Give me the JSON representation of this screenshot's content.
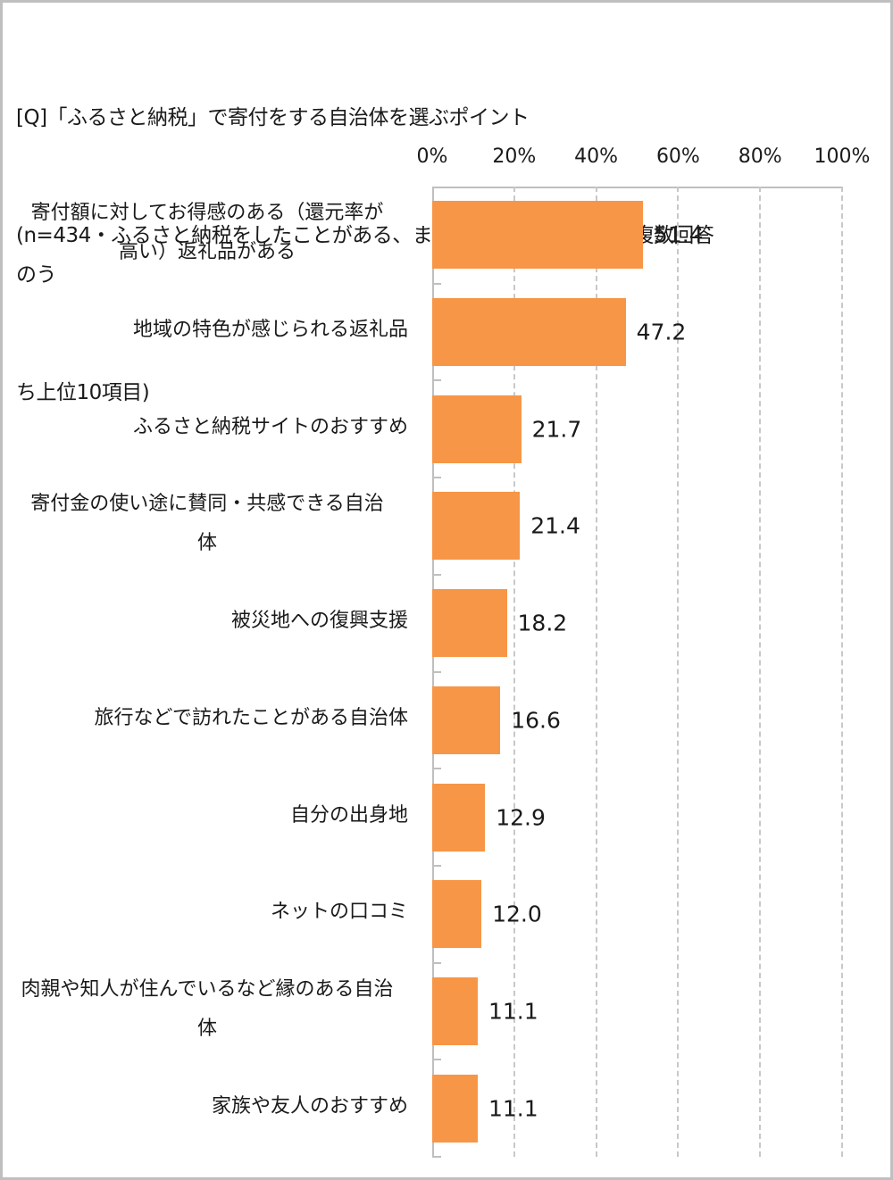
{
  "title": {
    "line1": "[Q]「ふるさと納税」で寄付をする自治体を選ぶポイント",
    "line2": "(n=434・ふるさと納税をしたことがある、またはしようと思う人・複数回答のう",
    "line3": "ち上位10項目)"
  },
  "colors": {
    "bar": "#F79646",
    "grid": "#C8C8C8",
    "border": "#BFBFBF"
  },
  "axis": {
    "ticks": [
      "0%",
      "20%",
      "40%",
      "60%",
      "80%",
      "100%"
    ]
  },
  "chart_data": {
    "type": "bar",
    "orientation": "horizontal",
    "title": "[Q]「ふるさと納税」で寄付をする自治体を選ぶポイント (n=434・ふるさと納税をしたことがある、またはしようと思う人・複数回答のうち上位10項目)",
    "xlabel": "",
    "ylabel": "",
    "xlim": [
      0,
      100
    ],
    "x_ticks": [
      "0%",
      "20%",
      "40%",
      "60%",
      "80%",
      "100%"
    ],
    "grid": true,
    "legend": null,
    "categories": [
      "寄付額に対してお得感のある（還元率が高い）返礼品がある",
      "地域の特色が感じられる返礼品",
      "ふるさと納税サイトのおすすめ",
      "寄付金の使い途に賛同・共感できる自治体",
      "被災地への復興支援",
      "旅行などで訪れたことがある自治体",
      "自分の出身地",
      "ネットの口コミ",
      "肉親や知人が住んでいるなど縁のある自治体",
      "家族や友人のおすすめ"
    ],
    "values": [
      51.4,
      47.2,
      21.7,
      21.4,
      18.2,
      16.6,
      12.9,
      12.0,
      11.1,
      11.1
    ],
    "value_labels": [
      "51.4",
      "47.2",
      "21.7",
      "21.4",
      "18.2",
      "16.6",
      "12.9",
      "12.0",
      "11.1",
      "11.1"
    ]
  },
  "labels": [
    {
      "l1": "寄付額に対してお得感のある（還元率が",
      "l2": "高い）返礼品がある"
    },
    {
      "l1": "地域の特色が感じられる返礼品",
      "l2": ""
    },
    {
      "l1": "ふるさと納税サイトのおすすめ",
      "l2": ""
    },
    {
      "l1": "寄付金の使い途に賛同・共感できる自治",
      "l2": "体"
    },
    {
      "l1": "被災地への復興支援",
      "l2": ""
    },
    {
      "l1": "旅行などで訪れたことがある自治体",
      "l2": ""
    },
    {
      "l1": "自分の出身地",
      "l2": ""
    },
    {
      "l1": "ネットの口コミ",
      "l2": ""
    },
    {
      "l1": "肉親や知人が住んでいるなど縁のある自治",
      "l2": "体"
    },
    {
      "l1": "家族や友人のおすすめ",
      "l2": ""
    }
  ]
}
